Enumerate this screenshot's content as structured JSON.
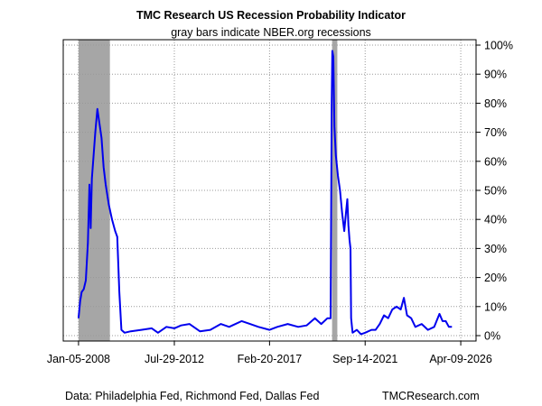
{
  "chart_data": {
    "type": "line",
    "title": "TMC Research US Recession Probability Indicator",
    "subtitle": "gray bars indicate NBER.org recessions",
    "xlabel": "",
    "ylabel": "",
    "ylim": [
      0,
      100
    ],
    "y_tick_values": [
      0,
      10,
      20,
      30,
      40,
      50,
      60,
      70,
      80,
      90,
      100
    ],
    "y_tick_labels": [
      "0%",
      "10%",
      "20%",
      "30%",
      "40%",
      "50%",
      "60%",
      "70%",
      "80%",
      "90%",
      "100%"
    ],
    "x_range": [
      2008.0,
      2026.27
    ],
    "x_tick_values": [
      2008.0,
      2012.58,
      2017.13,
      2021.7,
      2026.27
    ],
    "x_tick_labels": [
      "Jan-05-2008",
      "Jul-29-2012",
      "Feb-20-2017",
      "Sep-14-2021",
      "Apr-09-2026"
    ],
    "grid": true,
    "legend": "none",
    "recessions": [
      {
        "start": 2008.0,
        "end": 2009.5
      },
      {
        "start": 2020.12,
        "end": 2020.37
      }
    ],
    "series": [
      {
        "name": "Recession probability",
        "color": "#0000ee",
        "points": [
          [
            2008.0,
            6
          ],
          [
            2008.08,
            12
          ],
          [
            2008.15,
            15
          ],
          [
            2008.25,
            16
          ],
          [
            2008.35,
            19
          ],
          [
            2008.45,
            32
          ],
          [
            2008.52,
            52
          ],
          [
            2008.58,
            37
          ],
          [
            2008.64,
            54
          ],
          [
            2008.72,
            62
          ],
          [
            2008.8,
            70
          ],
          [
            2008.9,
            78
          ],
          [
            2009.0,
            73
          ],
          [
            2009.1,
            68
          ],
          [
            2009.2,
            58
          ],
          [
            2009.3,
            52
          ],
          [
            2009.45,
            45
          ],
          [
            2009.6,
            40
          ],
          [
            2009.75,
            36
          ],
          [
            2009.85,
            34
          ],
          [
            2009.95,
            15
          ],
          [
            2010.05,
            2
          ],
          [
            2010.2,
            1
          ],
          [
            2010.5,
            1.5
          ],
          [
            2011.0,
            2
          ],
          [
            2011.5,
            2.5
          ],
          [
            2011.8,
            1
          ],
          [
            2012.2,
            3
          ],
          [
            2012.58,
            2.5
          ],
          [
            2012.9,
            3.5
          ],
          [
            2013.3,
            4
          ],
          [
            2013.8,
            1.5
          ],
          [
            2014.3,
            2
          ],
          [
            2014.8,
            4
          ],
          [
            2015.2,
            3
          ],
          [
            2015.8,
            5
          ],
          [
            2016.2,
            4
          ],
          [
            2016.6,
            3
          ],
          [
            2017.13,
            2
          ],
          [
            2017.5,
            3
          ],
          [
            2018.0,
            4
          ],
          [
            2018.5,
            3
          ],
          [
            2018.9,
            3.5
          ],
          [
            2019.3,
            6
          ],
          [
            2019.6,
            4
          ],
          [
            2019.9,
            6
          ],
          [
            2020.05,
            6
          ],
          [
            2020.1,
            80
          ],
          [
            2020.13,
            98
          ],
          [
            2020.18,
            96
          ],
          [
            2020.23,
            72
          ],
          [
            2020.3,
            62
          ],
          [
            2020.4,
            55
          ],
          [
            2020.5,
            50
          ],
          [
            2020.6,
            42
          ],
          [
            2020.7,
            36
          ],
          [
            2020.78,
            42
          ],
          [
            2020.85,
            47
          ],
          [
            2020.9,
            38
          ],
          [
            2020.95,
            33
          ],
          [
            2021.0,
            30
          ],
          [
            2021.03,
            6
          ],
          [
            2021.1,
            1
          ],
          [
            2021.3,
            2
          ],
          [
            2021.5,
            0.5
          ],
          [
            2021.7,
            1
          ],
          [
            2022.0,
            2
          ],
          [
            2022.2,
            2
          ],
          [
            2022.4,
            4
          ],
          [
            2022.6,
            7
          ],
          [
            2022.8,
            6
          ],
          [
            2023.0,
            9
          ],
          [
            2023.2,
            10
          ],
          [
            2023.4,
            9
          ],
          [
            2023.55,
            13
          ],
          [
            2023.7,
            7
          ],
          [
            2023.9,
            6
          ],
          [
            2024.1,
            3
          ],
          [
            2024.4,
            4
          ],
          [
            2024.7,
            2
          ],
          [
            2025.0,
            3
          ],
          [
            2025.25,
            7.5
          ],
          [
            2025.4,
            5
          ],
          [
            2025.55,
            5
          ],
          [
            2025.7,
            3
          ],
          [
            2025.85,
            3
          ]
        ]
      }
    ]
  },
  "footer": {
    "source": "Data: Philadelphia Fed, Richmond Fed, Dallas Fed",
    "brand": "TMCResearch.com"
  }
}
